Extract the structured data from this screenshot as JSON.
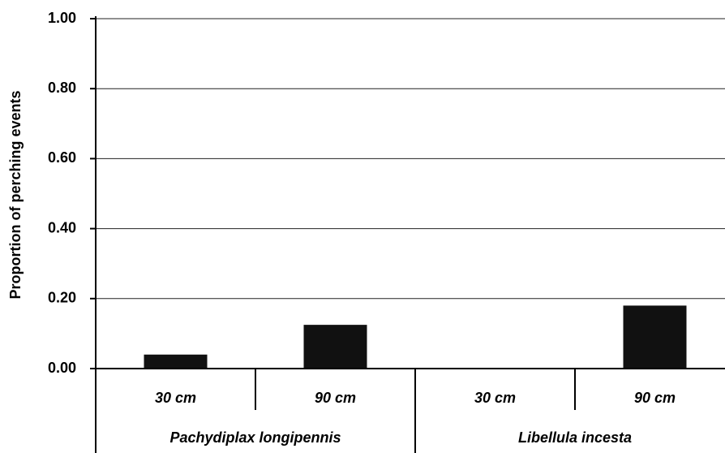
{
  "chart_data": {
    "type": "bar",
    "y_axis_label": "Proportion of perching events",
    "categories": [
      "30 cm",
      "90 cm",
      "30 cm",
      "90 cm"
    ],
    "groups": [
      "Pachydiplax longipennis",
      "Libellula incesta"
    ],
    "values": [
      0.04,
      0.125,
      0,
      0.18
    ],
    "color": "#111111",
    "ylim": [
      0,
      1
    ],
    "yticks": [
      {
        "value": 0,
        "label": "0.00"
      },
      {
        "value": 0.2,
        "label": "0.20"
      },
      {
        "value": 0.4,
        "label": "0.40"
      },
      {
        "value": 0.6,
        "label": "0.60"
      },
      {
        "value": 0.8,
        "label": "0.80"
      },
      {
        "value": 1,
        "label": "1.00"
      }
    ],
    "grid": true
  }
}
